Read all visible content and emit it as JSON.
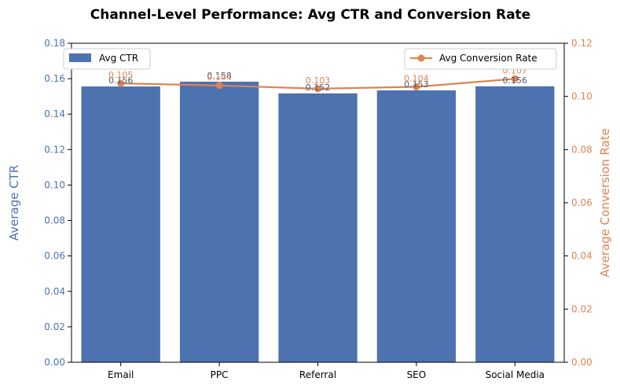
{
  "chart_data": {
    "type": "bar",
    "title": "Channel-Level Performance: Avg CTR and Conversion Rate",
    "categories": [
      "Email",
      "PPC",
      "Referral",
      "SEO",
      "Social Media"
    ],
    "series": [
      {
        "name": "Avg CTR",
        "kind": "bar",
        "axis": "left",
        "color": "#4c72b0",
        "values": [
          0.1556,
          0.1583,
          0.1517,
          0.1534,
          0.1557
        ],
        "labels": [
          "0.156",
          "0.158",
          "0.152",
          "0.153",
          "0.156"
        ]
      },
      {
        "name": "Avg Conversion Rate",
        "kind": "line",
        "axis": "right",
        "color": "#dd8452",
        "values": [
          0.1049,
          0.1041,
          0.1029,
          0.1036,
          0.1066
        ],
        "labels": [
          "0.105",
          "0.104",
          "0.103",
          "0.104",
          "0.107"
        ]
      }
    ],
    "ylabel": "Average CTR",
    "ylabel_right": "Average Conversion Rate",
    "ylim": [
      0,
      0.18
    ],
    "ylim_right": [
      0,
      0.12
    ],
    "yticks": [
      "0.00",
      "0.02",
      "0.04",
      "0.06",
      "0.08",
      "0.10",
      "0.12",
      "0.14",
      "0.16",
      "0.18"
    ],
    "yticks_right": [
      "0.00",
      "0.02",
      "0.04",
      "0.06",
      "0.08",
      "0.10",
      "0.12"
    ],
    "grid": false,
    "legend_bar_placement": "upper-left",
    "legend_line_placement": "upper-right"
  }
}
